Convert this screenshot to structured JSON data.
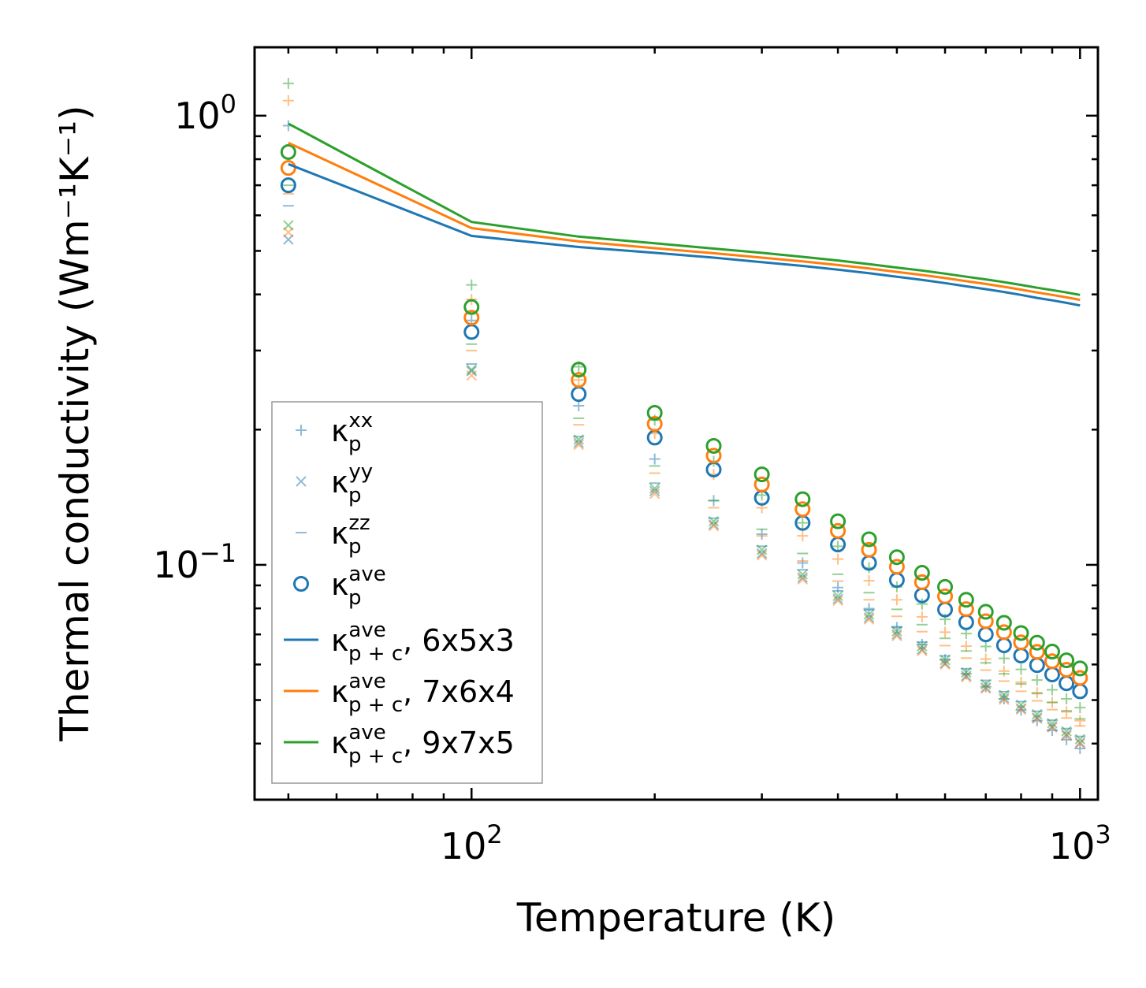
{
  "chart_data": {
    "type": "scatter",
    "xscale": "log",
    "yscale": "log",
    "xlim": [
      44,
      1070
    ],
    "ylim": [
      0.03,
      1.42
    ],
    "xlabel": "Temperature (K)",
    "ylabel": "Thermal conductivity (Wm⁻¹K⁻¹)",
    "xticks": [
      {
        "base": "10",
        "exp": "2",
        "value": 100
      },
      {
        "base": "10",
        "exp": "3",
        "value": 1000
      }
    ],
    "yticks": [
      {
        "base": "10",
        "exp": "0",
        "value": 1
      },
      {
        "base": "10",
        "exp": "−1",
        "value": 0.1
      }
    ],
    "x": [
      50,
      100,
      150,
      200,
      250,
      300,
      350,
      400,
      450,
      500,
      550,
      600,
      650,
      700,
      750,
      800,
      850,
      900,
      950,
      1000
    ],
    "colors": {
      "blue": "#1f77b4",
      "orange": "#ff7f0e",
      "green": "#2ca02c"
    },
    "grids": [
      {
        "name": "6x5x3",
        "color": "#1f77b4",
        "kxx": [
          0.95,
          0.35,
          0.226,
          0.172,
          0.139,
          0.117,
          0.101,
          0.089,
          0.0799,
          0.0725,
          0.0665,
          0.0615,
          0.0572,
          0.0535,
          0.0503,
          0.0475,
          0.045,
          0.0428,
          0.0408,
          0.039
        ],
        "kyy": [
          0.53,
          0.27,
          0.187,
          0.146,
          0.123,
          0.106,
          0.0937,
          0.084,
          0.0763,
          0.07,
          0.0648,
          0.0604,
          0.0566,
          0.0533,
          0.0505,
          0.0479,
          0.0457,
          0.0437,
          0.0419,
          0.0402
        ],
        "kzz": [
          0.63,
          0.28,
          0.193,
          0.152,
          0.127,
          0.11,
          0.0975,
          0.0875,
          0.0794,
          0.0728,
          0.0673,
          0.0627,
          0.0587,
          0.0553,
          0.0522,
          0.0496,
          0.0472,
          0.0451,
          0.0432,
          0.0415
        ],
        "kave": [
          0.7,
          0.33,
          0.24,
          0.192,
          0.163,
          0.141,
          0.124,
          0.111,
          0.101,
          0.0925,
          0.0855,
          0.0795,
          0.0745,
          0.07,
          0.0662,
          0.0628,
          0.0598,
          0.057,
          0.0545,
          0.0523
        ],
        "kpc": [
          0.78,
          0.54,
          0.51,
          0.495,
          0.483,
          0.472,
          0.463,
          0.454,
          0.446,
          0.438,
          0.431,
          0.424,
          0.417,
          0.411,
          0.405,
          0.399,
          0.393,
          0.388,
          0.383,
          0.378
        ]
      },
      {
        "name": "7x6x4",
        "color": "#ff7f0e",
        "kxx": [
          1.08,
          0.39,
          0.258,
          0.196,
          0.159,
          0.134,
          0.116,
          0.103,
          0.0922,
          0.0836,
          0.0766,
          0.0708,
          0.0659,
          0.0617,
          0.058,
          0.0548,
          0.0519,
          0.0494,
          0.0471,
          0.045
        ],
        "kyy": [
          0.55,
          0.264,
          0.185,
          0.144,
          0.122,
          0.105,
          0.0928,
          0.0832,
          0.0756,
          0.0694,
          0.0643,
          0.06,
          0.0562,
          0.053,
          0.0501,
          0.0476,
          0.0454,
          0.0434,
          0.0416,
          0.04
        ],
        "kzz": [
          0.67,
          0.3,
          0.205,
          0.16,
          0.134,
          0.116,
          0.102,
          0.092,
          0.0836,
          0.0768,
          0.071,
          0.0661,
          0.062,
          0.0583,
          0.0551,
          0.0523,
          0.0498,
          0.0476,
          0.0456,
          0.0438
        ],
        "kave": [
          0.765,
          0.355,
          0.258,
          0.206,
          0.175,
          0.151,
          0.133,
          0.119,
          0.108,
          0.099,
          0.0915,
          0.0851,
          0.0797,
          0.0749,
          0.0708,
          0.0672,
          0.064,
          0.061,
          0.0584,
          0.056
        ],
        "kpc": [
          0.87,
          0.562,
          0.525,
          0.507,
          0.494,
          0.483,
          0.474,
          0.465,
          0.457,
          0.449,
          0.442,
          0.435,
          0.428,
          0.422,
          0.416,
          0.41,
          0.404,
          0.399,
          0.394,
          0.389
        ]
      },
      {
        "name": "9x7x5",
        "color": "#2ca02c",
        "kxx": [
          1.18,
          0.42,
          0.276,
          0.21,
          0.17,
          0.143,
          0.124,
          0.11,
          0.0985,
          0.0893,
          0.0818,
          0.0756,
          0.0703,
          0.0658,
          0.0619,
          0.0585,
          0.0554,
          0.0527,
          0.0503,
          0.0481
        ],
        "kyy": [
          0.57,
          0.272,
          0.19,
          0.148,
          0.125,
          0.108,
          0.0952,
          0.0853,
          0.0775,
          0.0711,
          0.0659,
          0.0614,
          0.0576,
          0.0542,
          0.0513,
          0.0488,
          0.0465,
          0.0444,
          0.0426,
          0.0409
        ],
        "kzz": [
          0.7,
          0.31,
          0.212,
          0.166,
          0.139,
          0.12,
          0.106,
          0.0953,
          0.0867,
          0.0796,
          0.0736,
          0.0686,
          0.0643,
          0.0605,
          0.0572,
          0.0543,
          0.0517,
          0.0494,
          0.0473,
          0.0454
        ],
        "kave": [
          0.83,
          0.375,
          0.272,
          0.218,
          0.184,
          0.159,
          0.14,
          0.125,
          0.114,
          0.104,
          0.096,
          0.0893,
          0.0836,
          0.0786,
          0.0743,
          0.0705,
          0.0671,
          0.0641,
          0.0613,
          0.0588
        ],
        "kpc": [
          0.96,
          0.58,
          0.538,
          0.52,
          0.506,
          0.495,
          0.485,
          0.476,
          0.467,
          0.459,
          0.452,
          0.445,
          0.438,
          0.432,
          0.426,
          0.42,
          0.414,
          0.409,
          0.404,
          0.399
        ]
      }
    ],
    "legend": {
      "position": "lower-left",
      "entries": [
        {
          "marker": "plus",
          "kappa": "κ",
          "sub": "p",
          "sup": "xx",
          "suffix": ""
        },
        {
          "marker": "cross",
          "kappa": "κ",
          "sub": "p",
          "sup": "yy",
          "suffix": ""
        },
        {
          "marker": "dash",
          "kappa": "κ",
          "sub": "p",
          "sup": "zz",
          "suffix": ""
        },
        {
          "marker": "circle",
          "kappa": "κ",
          "sub": "p",
          "sup": "ave",
          "suffix": ""
        },
        {
          "marker": "line-blue",
          "kappa": "κ",
          "sub": "p + c",
          "sup": "ave",
          "suffix": ", 6x5x3"
        },
        {
          "marker": "line-orange",
          "kappa": "κ",
          "sub": "p + c",
          "sup": "ave",
          "suffix": ", 7x6x4"
        },
        {
          "marker": "line-green",
          "kappa": "κ",
          "sub": "p + c",
          "sup": "ave",
          "suffix": ", 9x7x5"
        }
      ]
    }
  }
}
